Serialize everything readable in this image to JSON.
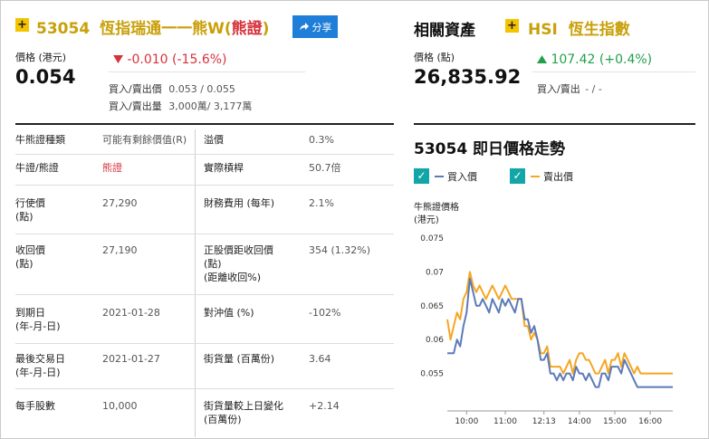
{
  "warrant": {
    "plus": "+",
    "code": "53054",
    "name": "恆指瑞通一一熊W",
    "type_open": "(",
    "type": "熊證",
    "type_close": ")",
    "share_label": "分享",
    "price_label": "價格 (港元)",
    "price": "0.054",
    "change": "-0.010 (-15.6%)",
    "change_icon": "triangle-down-icon",
    "bid_ask_label": "買入/賣出價",
    "bid_ask": "0.053 / 0.055",
    "bid_ask_vol_label": "買入/賣出量",
    "bid_ask_vol": "3,000萬/ 3,177萬"
  },
  "related": {
    "title": "相關資產",
    "plus": "+",
    "asset_code": "HSI",
    "asset_name": "恆生指數",
    "price_label": "價格 (點)",
    "price": "26,835.92",
    "change": "107.42 (+0.4%)",
    "change_icon": "triangle-up-icon",
    "bid_ask_label": "買入/賣出",
    "bid_ask": "- / -"
  },
  "details": [
    {
      "l1": "牛熊證種類",
      "v1": "可能有剩餘價值(R)",
      "l2": "溢價",
      "v2": "0.3%"
    },
    {
      "l1": "牛證/熊證",
      "v1": "熊證",
      "l2": "實際槓桿",
      "v2": "50.7倍"
    },
    {
      "l1": "行使價\n(點)",
      "v1": "27,290",
      "l2": "財務費用 (每年)",
      "v2": "2.1%"
    },
    {
      "l1": "收回價\n(點)",
      "v1": "27,190",
      "l2": "正股價距收回價\n(點)\n(距離收回%)",
      "v2": "354 (1.32%)"
    },
    {
      "l1": "到期日\n(年-月-日)",
      "v1": "2021-01-28",
      "l2": "對沖值 (%)",
      "v2": "-102%"
    },
    {
      "l1": "最後交易日\n(年-月-日)",
      "v1": "2021-01-27",
      "l2": "街貨量 (百萬份)",
      "v2": "3.64"
    },
    {
      "l1": "每手股數",
      "v1": "10,000",
      "l2": "街貨量較上日變化\n(百萬份)",
      "v2": "+2.14"
    }
  ],
  "chart_section": {
    "title": "53054 即日價格走勢",
    "legend": [
      {
        "label": "買入價",
        "color": "#5b7bb8"
      },
      {
        "label": "賣出價",
        "color": "#f5a623"
      }
    ]
  },
  "chart_data": {
    "type": "line",
    "ylabel": "牛熊證價格\n(港元)",
    "ylim": [
      0.05,
      0.075
    ],
    "yticks": [
      "0.075",
      "0.07",
      "0.065",
      "0.06",
      "0.055"
    ],
    "xticks": [
      "10:00",
      "11:00",
      "12:13",
      "14:00",
      "15:00",
      "16:00"
    ],
    "grid": false,
    "series": [
      {
        "name": "買入價",
        "color": "#5b7bb8",
        "x": [
          0,
          1,
          2,
          3,
          4,
          5,
          6,
          7,
          8,
          9,
          10,
          11,
          12,
          13,
          14,
          15,
          16,
          17,
          18,
          19,
          20,
          21,
          22,
          23,
          24,
          25,
          26,
          27,
          28,
          29,
          30,
          31,
          32,
          33,
          34,
          35,
          36,
          37,
          38,
          39,
          40,
          41,
          42,
          43,
          44,
          45,
          46,
          47,
          48,
          49,
          50,
          51,
          52,
          53,
          54,
          55,
          56,
          57,
          58,
          59,
          60,
          61,
          62,
          63,
          64,
          65,
          66,
          67,
          68,
          69,
          70
        ],
        "values": [
          0.058,
          0.058,
          0.058,
          0.06,
          0.059,
          0.062,
          0.064,
          0.069,
          0.067,
          0.065,
          0.065,
          0.066,
          0.065,
          0.064,
          0.066,
          0.065,
          0.064,
          0.066,
          0.065,
          0.066,
          0.065,
          0.064,
          0.066,
          0.066,
          0.063,
          0.063,
          0.061,
          0.062,
          0.06,
          0.057,
          0.057,
          0.058,
          0.055,
          0.055,
          0.054,
          0.055,
          0.054,
          0.055,
          0.055,
          0.054,
          0.056,
          0.055,
          0.055,
          0.054,
          0.055,
          0.054,
          0.053,
          0.053,
          0.055,
          0.055,
          0.054,
          0.056,
          0.056,
          0.056,
          0.055,
          0.057,
          0.056,
          0.055,
          0.054,
          0.053,
          0.053,
          0.053,
          0.053,
          0.053,
          0.053,
          0.053,
          0.053,
          0.053,
          0.053,
          0.053,
          0.053
        ]
      },
      {
        "name": "賣出價",
        "color": "#f5a623",
        "x": [
          0,
          1,
          2,
          3,
          4,
          5,
          6,
          7,
          8,
          9,
          10,
          11,
          12,
          13,
          14,
          15,
          16,
          17,
          18,
          19,
          20,
          21,
          22,
          23,
          24,
          25,
          26,
          27,
          28,
          29,
          30,
          31,
          32,
          33,
          34,
          35,
          36,
          37,
          38,
          39,
          40,
          41,
          42,
          43,
          44,
          45,
          46,
          47,
          48,
          49,
          50,
          51,
          52,
          53,
          54,
          55,
          56,
          57,
          58,
          59,
          60,
          61,
          62,
          63,
          64,
          65,
          66,
          67,
          68,
          69,
          70
        ],
        "values": [
          0.063,
          0.06,
          0.062,
          0.064,
          0.063,
          0.066,
          0.067,
          0.07,
          0.068,
          0.067,
          0.068,
          0.067,
          0.066,
          0.067,
          0.068,
          0.067,
          0.066,
          0.067,
          0.068,
          0.067,
          0.066,
          0.066,
          0.066,
          0.066,
          0.062,
          0.062,
          0.06,
          0.061,
          0.06,
          0.058,
          0.058,
          0.059,
          0.056,
          0.056,
          0.056,
          0.056,
          0.055,
          0.056,
          0.057,
          0.055,
          0.057,
          0.058,
          0.058,
          0.057,
          0.057,
          0.056,
          0.055,
          0.055,
          0.056,
          0.057,
          0.055,
          0.057,
          0.057,
          0.058,
          0.056,
          0.058,
          0.057,
          0.056,
          0.055,
          0.056,
          0.055,
          0.055,
          0.055,
          0.055,
          0.055,
          0.055,
          0.055,
          0.055,
          0.055,
          0.055,
          0.055
        ]
      }
    ]
  }
}
